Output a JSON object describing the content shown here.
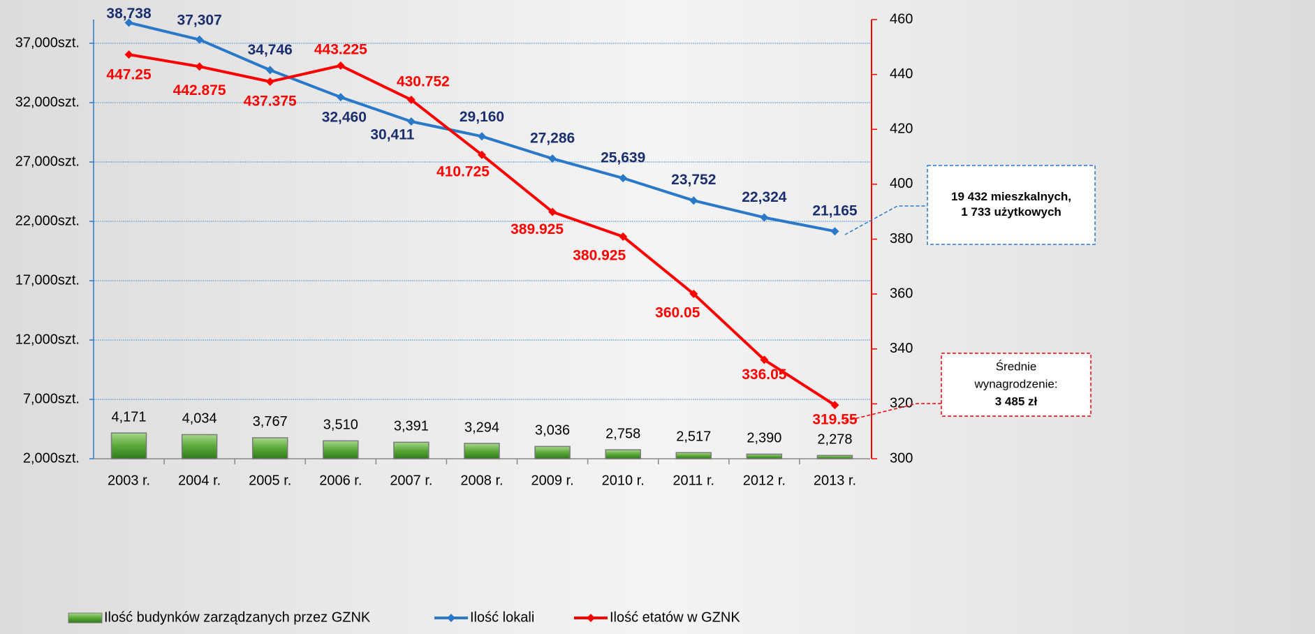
{
  "chart_data": {
    "type": "bar",
    "categories": [
      "2003 r.",
      "2004 r.",
      "2005 r.",
      "2006 r.",
      "2007 r.",
      "2008 r.",
      "2009 r.",
      "2010 r.",
      "2011 r.",
      "2012 r.",
      "2013 r."
    ],
    "series": [
      {
        "name": "Ilość budynków zarządzanych przez GZNK",
        "type": "bar",
        "color": "#4f9a2f",
        "values": [
          4171,
          4034,
          3767,
          3510,
          3391,
          3294,
          3036,
          2758,
          2517,
          2390,
          2278
        ],
        "value_labels": [
          "4,171",
          "4,034",
          "3,767",
          "3,510",
          "3,391",
          "3,294",
          "3,036",
          "2,758",
          "2,517",
          "2,390",
          "2,278"
        ]
      },
      {
        "name": "Ilość lokali",
        "type": "line",
        "color": "#2a78c8",
        "label_color": "#1b2f6e",
        "values": [
          38738,
          37307,
          34746,
          32460,
          30411,
          29160,
          27286,
          25639,
          23752,
          22324,
          21165
        ],
        "value_labels": [
          "38,738",
          "37,307",
          "34,746",
          "32,460",
          "30,411",
          "29,160",
          "27,286",
          "25,639",
          "23,752",
          "22,324",
          "21,165"
        ]
      },
      {
        "name": "Ilość etatów w GZNK",
        "type": "line",
        "axis": "y2",
        "color": "#ff0000",
        "label_color": "#ff0000",
        "values": [
          447.25,
          442.875,
          437.375,
          443.225,
          430.752,
          410.725,
          389.925,
          380.925,
          360.05,
          336.05,
          319.55
        ]
      }
    ],
    "ylim": [
      2000,
      39000
    ],
    "yticks": [
      {
        "value": 2000,
        "label": "2,000szt."
      },
      {
        "value": 7000,
        "label": "7,000szt."
      },
      {
        "value": 12000,
        "label": "12,000szt."
      },
      {
        "value": 17000,
        "label": "17,000szt."
      },
      {
        "value": 22000,
        "label": "22,000szt."
      },
      {
        "value": 27000,
        "label": "27,000szt."
      },
      {
        "value": 32000,
        "label": "32,000szt."
      },
      {
        "value": 37000,
        "label": "37,000szt."
      }
    ],
    "y2lim": [
      300,
      460
    ],
    "y2ticks": [
      300,
      320,
      340,
      360,
      380,
      400,
      420,
      440,
      460
    ],
    "grid": true,
    "legend": "bottom",
    "annotations": [
      {
        "lines": [
          "19 432 mieszkalnych,",
          "1 733 użytkowych"
        ]
      },
      {
        "lines": [
          "Średnie",
          "wynagrodzenie:",
          "3 485 zł"
        ]
      }
    ]
  }
}
